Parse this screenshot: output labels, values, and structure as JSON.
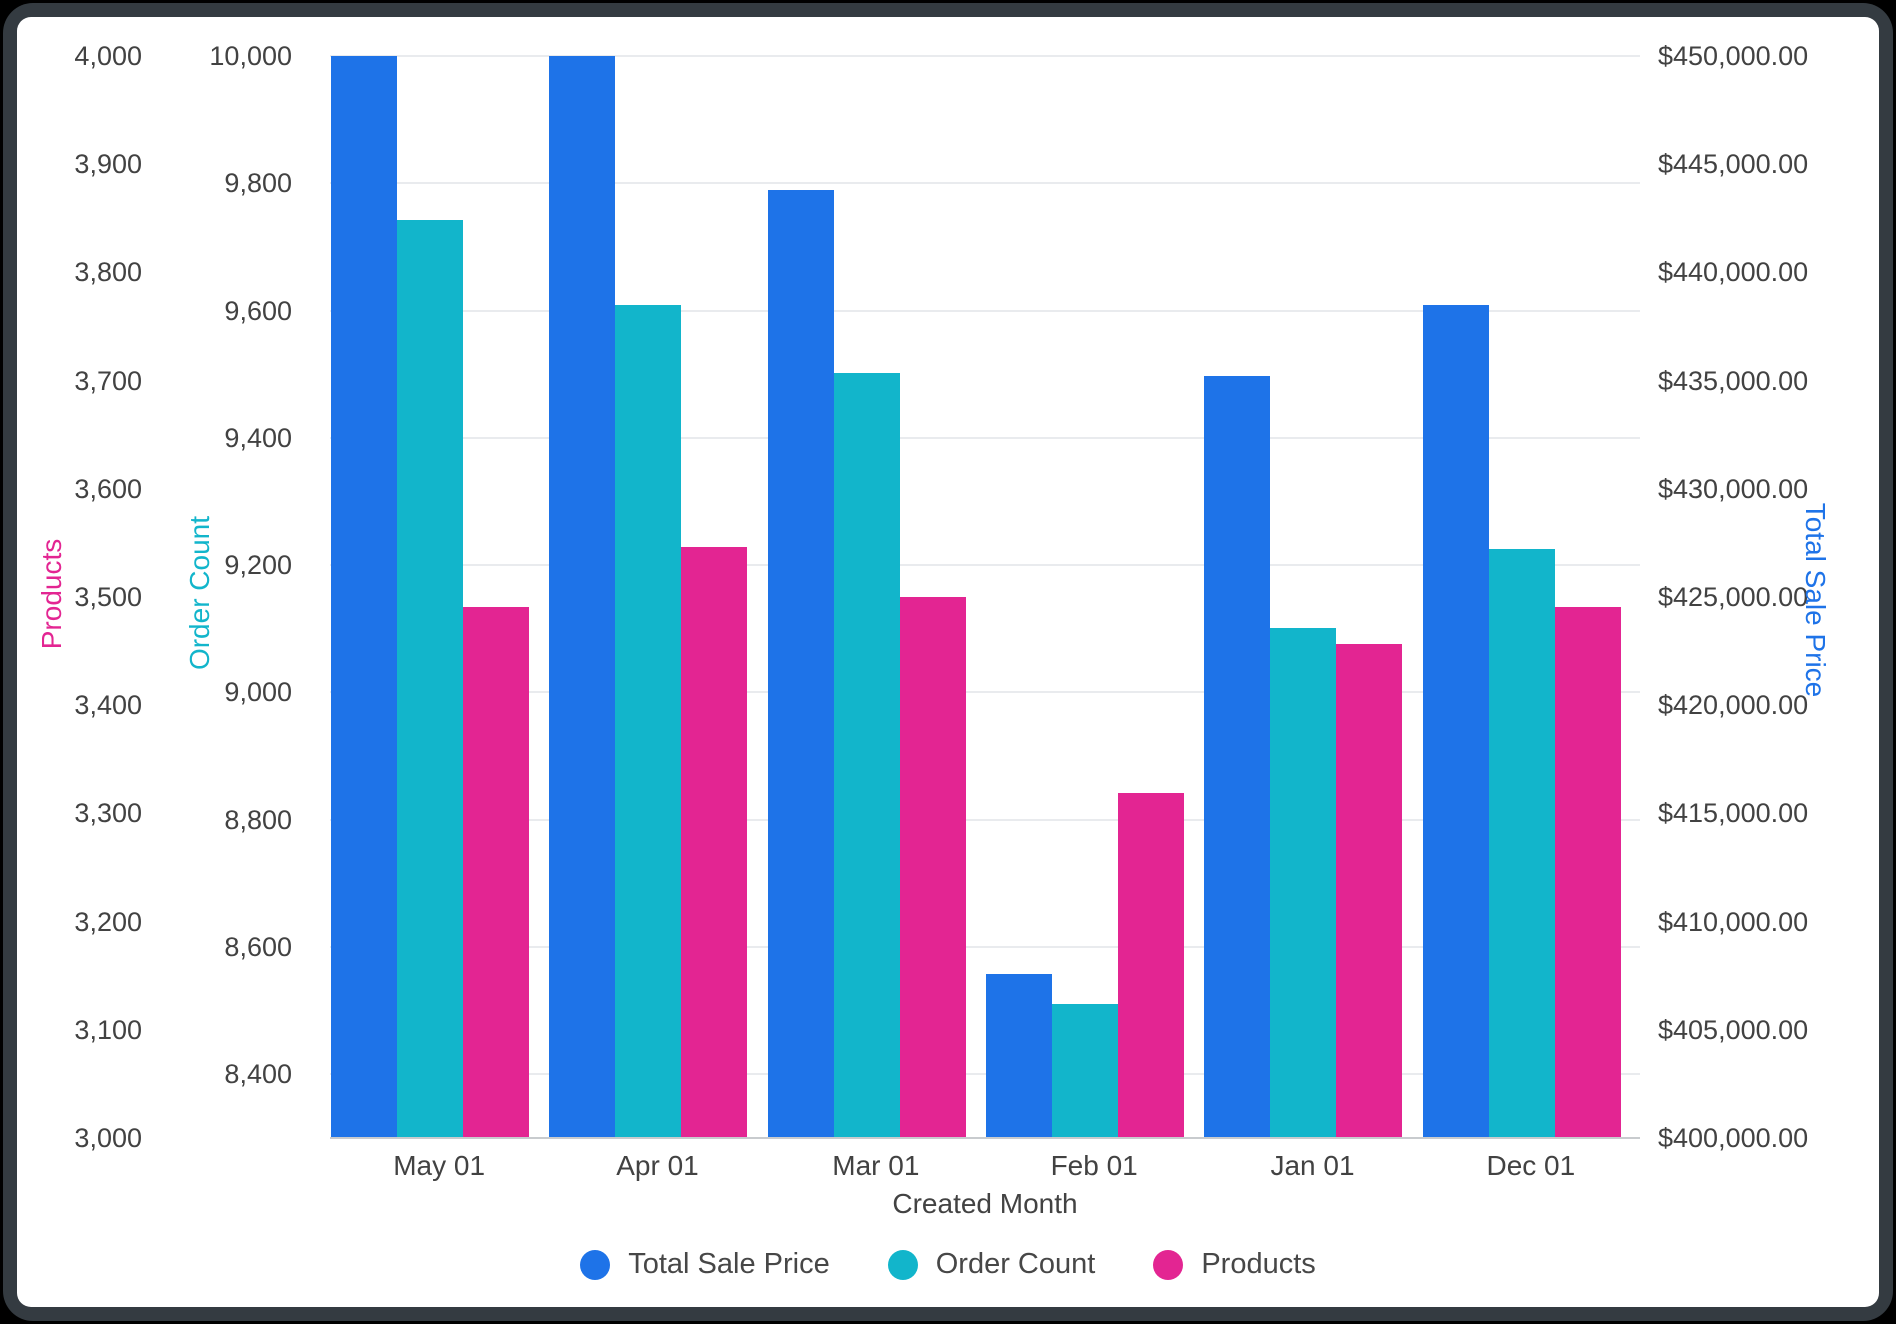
{
  "chart_data": {
    "type": "bar",
    "categories": [
      "May 01",
      "Apr 01",
      "Mar 01",
      "Feb 01",
      "Jan 01",
      "Dec 01"
    ],
    "series": [
      {
        "name": "Total Sale Price",
        "axis": "price",
        "color": "#1e73e8",
        "values": [
          450000,
          450000,
          443800,
          407600,
          435200,
          438500
        ]
      },
      {
        "name": "Order Count",
        "axis": "order",
        "color": "#12b5cb",
        "values": [
          9742,
          9608,
          9502,
          8510,
          9101,
          9225
        ]
      },
      {
        "name": "Products",
        "axis": "products",
        "color": "#e32592",
        "values": [
          3491,
          3546,
          3500,
          3319,
          3457,
          3491
        ]
      }
    ],
    "xlabel": "Created Month",
    "axes": {
      "products": {
        "title": "Products",
        "color": "#e32592",
        "side": "left-outer",
        "min": 3000,
        "max": 4000,
        "tick_values": [
          4000,
          3900,
          3800,
          3700,
          3600,
          3500,
          3400,
          3300,
          3200,
          3100,
          3000
        ],
        "tick_labels": [
          "4,000",
          "3,900",
          "3,800",
          "3,700",
          "3,600",
          "3,500",
          "3,400",
          "3,300",
          "3,200",
          "3,100",
          "3,000"
        ]
      },
      "order": {
        "title": "Order Count",
        "color": "#12b5cb",
        "side": "left-inner",
        "min": 8300,
        "max": 10000,
        "tick_values": [
          10000,
          9800,
          9600,
          9400,
          9200,
          9000,
          8800,
          8600,
          8400
        ],
        "tick_labels": [
          "10,000",
          "9,800",
          "9,600",
          "9,400",
          "9,200",
          "9,000",
          "8,800",
          "8,600",
          "8,400"
        ]
      },
      "price": {
        "title": "Total Sale Price",
        "color": "#1e73e8",
        "side": "right",
        "min": 400000,
        "max": 450000,
        "tick_values": [
          450000,
          445000,
          440000,
          435000,
          430000,
          425000,
          420000,
          415000,
          410000,
          405000,
          400000
        ],
        "tick_labels": [
          "$450,000.00",
          "$445,000.00",
          "$440,000.00",
          "$435,000.00",
          "$430,000.00",
          "$425,000.00",
          "$420,000.00",
          "$415,000.00",
          "$410,000.00",
          "$405,000.00",
          "$400,000.00"
        ]
      }
    },
    "grid": "horizontal lines at order-axis ticks",
    "legend_position": "bottom",
    "legend": [
      "Total Sale Price",
      "Order Count",
      "Products"
    ]
  }
}
